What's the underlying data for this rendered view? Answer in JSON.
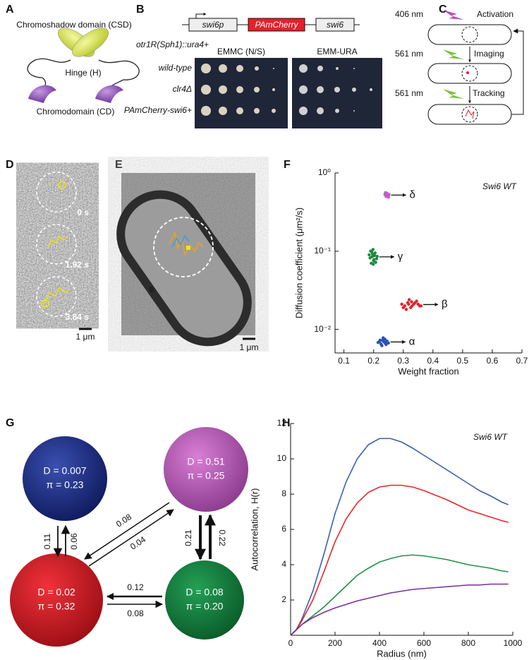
{
  "figure": {
    "labels": [
      "A",
      "B",
      "C",
      "D",
      "E",
      "F",
      "G",
      "H"
    ],
    "panel_a": {
      "csd": "Chromoshadow domain (CSD)",
      "hinge": "Hinge (H)",
      "cd": "Chromodomain (CD)"
    },
    "panel_b": {
      "construct": [
        "swi6p",
        "PAmCherry",
        "swi6"
      ],
      "strain": "otr1R(Sph1)::ura4+",
      "plates": [
        "EMMC (N/S)",
        "EMM-URA"
      ],
      "rows": [
        "wild-type",
        "clr4Δ",
        "PAmCherry-swi6+"
      ]
    },
    "panel_c": {
      "steps": [
        {
          "wavelength": "406 nm",
          "label": "Activation"
        },
        {
          "wavelength": "561 nm",
          "label": "Imaging"
        },
        {
          "wavelength": "561 nm",
          "label": "Tracking"
        }
      ]
    },
    "panel_d": {
      "times": [
        "0 s",
        "1.92 s",
        "3.84 s"
      ],
      "scale": "1 μm"
    },
    "panel_e": {
      "scale": "1 μm"
    },
    "panel_g": {
      "states": [
        {
          "d": "D = 0.007",
          "pi": "π = 0.23"
        },
        {
          "d": "D = 0.51",
          "pi": "π = 0.25"
        },
        {
          "d": "D = 0.02",
          "pi": "π = 0.32"
        },
        {
          "d": "D = 0.08",
          "pi": "π = 0.20"
        }
      ],
      "rates": [
        "0.11",
        "0.06",
        "0.08",
        "0.04",
        "0.21",
        "0.22",
        "0.12",
        "0.08"
      ]
    }
  },
  "chart_data": [
    {
      "type": "scatter",
      "annotation": "Swi6 WT",
      "xlabel": "Weight fraction",
      "ylabel": "Diffusion coefficient (μm²/s)",
      "xlim": [
        0.07,
        0.7
      ],
      "xticks": [
        0.1,
        0.2,
        0.3,
        0.4,
        0.5,
        0.6,
        0.7
      ],
      "ylim": [
        0.005,
        1
      ],
      "yscale": "log",
      "yticks": [
        {
          "value": 0.01,
          "label": "10⁻²"
        },
        {
          "value": 0.1,
          "label": "10⁻¹"
        },
        {
          "value": 1,
          "label": "10⁰"
        }
      ],
      "series": [
        {
          "name": "δ",
          "color": "#c25fc4",
          "x": [
            0.238,
            0.242,
            0.245,
            0.248,
            0.25,
            0.244,
            0.24,
            0.252,
            0.246,
            0.243,
            0.249,
            0.241
          ],
          "values": [
            0.53,
            0.5,
            0.55,
            0.52,
            0.49,
            0.51,
            0.56,
            0.53,
            0.5,
            0.54,
            0.51,
            0.52
          ]
        },
        {
          "name": "γ",
          "color": "#1d8c3c",
          "x": [
            0.185,
            0.19,
            0.195,
            0.2,
            0.205,
            0.21,
            0.192,
            0.198,
            0.203,
            0.188,
            0.207,
            0.196,
            0.201,
            0.194,
            0.212,
            0.199
          ],
          "values": [
            0.09,
            0.1,
            0.085,
            0.075,
            0.095,
            0.08,
            0.07,
            0.105,
            0.088,
            0.082,
            0.072,
            0.092,
            0.078,
            0.098,
            0.086,
            0.068
          ]
        },
        {
          "name": "β",
          "color": "#e3212b",
          "x": [
            0.295,
            0.305,
            0.315,
            0.325,
            0.335,
            0.345,
            0.355,
            0.31,
            0.32,
            0.33,
            0.34,
            0.3,
            0.35,
            0.36,
            0.318,
            0.328
          ],
          "values": [
            0.021,
            0.02,
            0.022,
            0.019,
            0.021,
            0.023,
            0.02,
            0.018,
            0.024,
            0.02,
            0.022,
            0.019,
            0.021,
            0.02,
            0.021,
            0.0225
          ]
        },
        {
          "name": "α",
          "color": "#2a52b3",
          "x": [
            0.215,
            0.22,
            0.225,
            0.23,
            0.235,
            0.24,
            0.245,
            0.25,
            0.228,
            0.238,
            0.232,
            0.242,
            0.222,
            0.236
          ],
          "values": [
            0.0068,
            0.007,
            0.0065,
            0.0072,
            0.0069,
            0.0066,
            0.0071,
            0.0067,
            0.0062,
            0.0075,
            0.0078,
            0.0064,
            0.0073,
            0.0069
          ]
        }
      ]
    },
    {
      "type": "line",
      "annotation": "Swi6 WT",
      "xlabel": "Radius (nm)",
      "ylabel": "Autocorrelation, H(r)",
      "x": [
        0,
        25,
        50,
        100,
        150,
        200,
        250,
        300,
        350,
        400,
        450,
        500,
        550,
        600,
        650,
        700,
        750,
        800,
        850,
        900,
        950,
        980
      ],
      "xlim": [
        0,
        1000
      ],
      "xticks": [
        0,
        200,
        400,
        600,
        800,
        1000
      ],
      "ylim": [
        0,
        12
      ],
      "yticks": [
        2,
        4,
        6,
        8,
        10,
        12
      ],
      "series": [
        {
          "color": "#3b5fb0",
          "values": [
            0,
            0.3,
            0.9,
            2.5,
            4.6,
            6.9,
            8.7,
            10.0,
            10.8,
            11.15,
            11.15,
            10.95,
            10.6,
            10.2,
            9.8,
            9.4,
            9.0,
            8.6,
            8.2,
            7.9,
            7.55,
            7.4
          ]
        },
        {
          "color": "#e8262c",
          "values": [
            0,
            0.3,
            0.8,
            2.0,
            3.6,
            5.3,
            6.6,
            7.5,
            8.1,
            8.4,
            8.5,
            8.5,
            8.4,
            8.2,
            7.95,
            7.7,
            7.4,
            7.1,
            6.9,
            6.7,
            6.5,
            6.4
          ]
        },
        {
          "color": "#229247",
          "values": [
            0,
            0.3,
            0.6,
            1.1,
            1.6,
            2.2,
            2.8,
            3.4,
            3.8,
            4.15,
            4.35,
            4.5,
            4.55,
            4.5,
            4.4,
            4.3,
            4.15,
            4.0,
            3.9,
            3.8,
            3.65,
            3.6
          ]
        },
        {
          "color": "#7a2f9a",
          "values": [
            0,
            0.3,
            0.6,
            1.0,
            1.3,
            1.55,
            1.75,
            1.95,
            2.1,
            2.25,
            2.4,
            2.5,
            2.6,
            2.65,
            2.7,
            2.75,
            2.8,
            2.85,
            2.85,
            2.9,
            2.9,
            2.9
          ]
        }
      ]
    }
  ]
}
